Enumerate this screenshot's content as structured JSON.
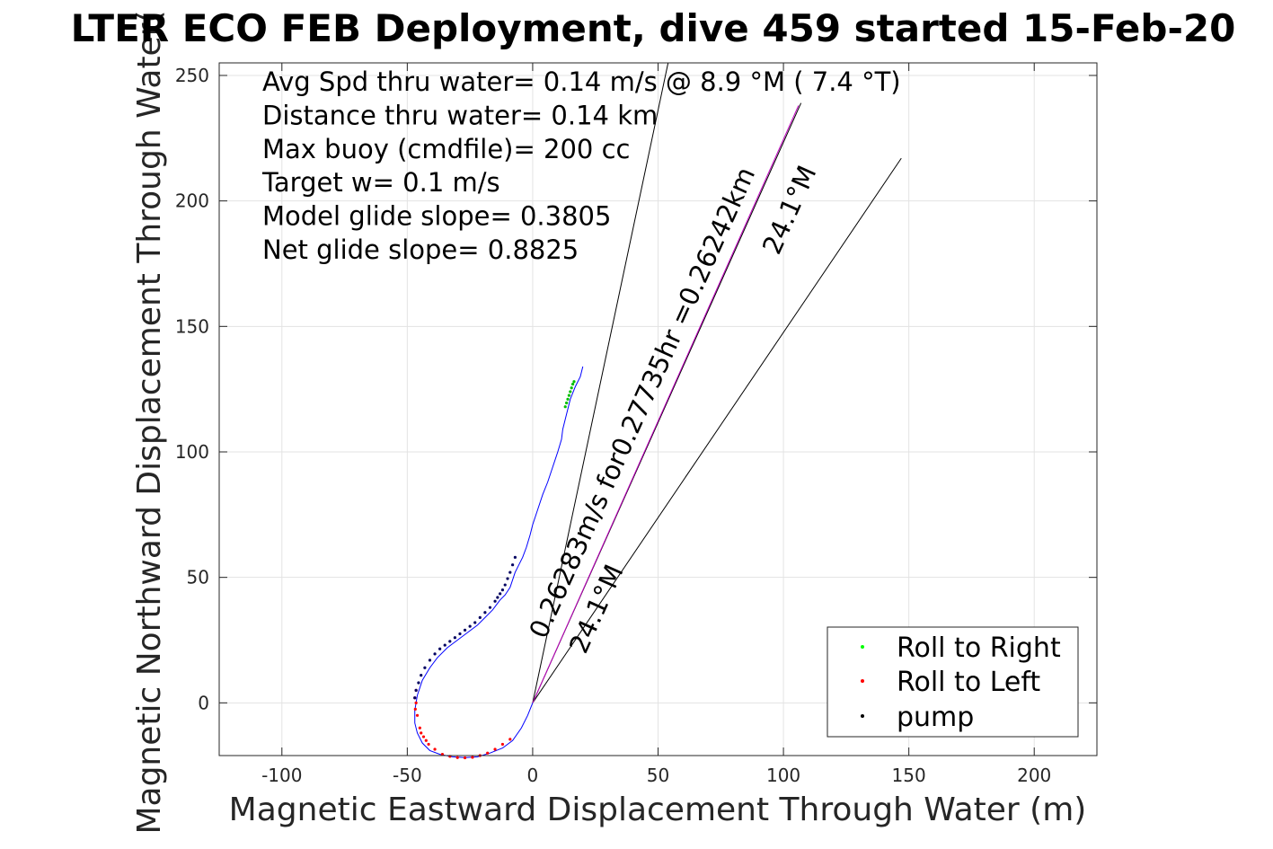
{
  "chart_data": {
    "type": "line",
    "title": "LTER ECO FEB Deployment, dive 459 started 15-Feb-20",
    "xlabel": "Magnetic Eastward Displacement Through Water (m)",
    "ylabel": "Magnetic Northward Displacement Through Water(",
    "xlim": [
      -125,
      225
    ],
    "ylim": [
      -21,
      255
    ],
    "xticks": [
      -100,
      -50,
      0,
      50,
      100,
      150,
      200
    ],
    "xtick_labels": [
      "-100",
      "-50",
      "0",
      "50",
      "100",
      "150",
      "200"
    ],
    "yticks": [
      0,
      50,
      100,
      150,
      200,
      250
    ],
    "ytick_labels": [
      "0",
      "50",
      "100",
      "150",
      "200",
      "250"
    ],
    "grid": true,
    "stats_lines": [
      "Avg Spd thru water=  0.14 m/s @   8.9 °M (  7.4 °T)",
      "Distance thru water=  0.14 km",
      "Max buoy (cmdfile)= 200 cc",
      "Target w= 0.1 m/s",
      "Model glide slope= 0.3805",
      "Net glide slope= 0.8825"
    ],
    "track": {
      "name": "track",
      "color": "#0000ff",
      "x": [
        20,
        19,
        17,
        15,
        14,
        13,
        12,
        11.5,
        10,
        8,
        6,
        4,
        2,
        0,
        -1,
        -2.5,
        -4,
        -5.5,
        -7,
        -8,
        -9,
        -11,
        -13,
        -16,
        -19,
        -22,
        -26,
        -30,
        -34,
        -38,
        -41,
        -44,
        -46,
        -47,
        -47,
        -46,
        -44,
        -41,
        -37,
        -32,
        -27,
        -22,
        -17,
        -12,
        -8,
        -4.5,
        -2,
        0
      ],
      "y": [
        134,
        130,
        126,
        121,
        117,
        113,
        109,
        105,
        100,
        94,
        88,
        83,
        77,
        71,
        67,
        62,
        58,
        55,
        52,
        49,
        46,
        43,
        41,
        37,
        34,
        31,
        28,
        25,
        22,
        18,
        14,
        9,
        3,
        -3,
        -8,
        -12,
        -16,
        -19,
        -20.5,
        -21.5,
        -21.8,
        -21.5,
        -20,
        -18,
        -15,
        -10,
        -5,
        0
      ]
    },
    "roll_right_points": {
      "name": "Roll to Right",
      "color": "#00c000",
      "x": [
        16.5,
        16,
        15.5,
        15,
        14.5,
        14,
        13.5,
        13
      ],
      "y": [
        128,
        127,
        125.5,
        124,
        122.5,
        121,
        119.5,
        118
      ]
    },
    "roll_left_points": {
      "name": "Roll to Left",
      "color": "#ff0000",
      "x": [
        -46.5,
        -46.5,
        -46,
        -45,
        -43.5,
        -41.5,
        -39,
        -36,
        -33,
        -30,
        -27,
        -24,
        -21,
        -18,
        -15,
        -12,
        -9,
        -47,
        -46.8,
        -44.5,
        -42.5
      ],
      "y": [
        5,
        0,
        -5,
        -10,
        -13.5,
        -16.5,
        -18.5,
        -20.5,
        -21.3,
        -21.8,
        -21.9,
        -21.7,
        -21,
        -20,
        -18.5,
        -16.5,
        -14.5,
        2,
        -2.5,
        -12,
        -15
      ]
    },
    "pump_points": {
      "name": "pump",
      "color": "#000060",
      "x": [
        -7,
        -8,
        -9,
        -10,
        -11,
        -12,
        -13,
        -14,
        -15,
        -17,
        -19,
        -21,
        -23,
        -25,
        -27,
        -29,
        -31,
        -33,
        -35,
        -37,
        -39,
        -41,
        -43,
        -44.5,
        -45.5,
        -46.5,
        -47
      ],
      "y": [
        58,
        55,
        52,
        49.5,
        47,
        45,
        43.5,
        42,
        40.5,
        38,
        36,
        34,
        32,
        30.5,
        29,
        27.5,
        26,
        24.5,
        23,
        21.5,
        19.5,
        17,
        14,
        11,
        8,
        5,
        2
      ]
    },
    "reference_lines": [
      {
        "color": "#000000",
        "x": [
          0,
          54
        ],
        "y": [
          0,
          255
        ]
      },
      {
        "color": "#000000",
        "x": [
          0,
          147
        ],
        "y": [
          0,
          217
        ]
      },
      {
        "color": "#000000",
        "x": [
          0,
          107
        ],
        "y": [
          0,
          239
        ]
      },
      {
        "color": "#c000c0",
        "x": [
          0,
          106
        ],
        "y": [
          0,
          238
        ]
      }
    ],
    "annotations": [
      {
        "text": "0.26283m/s for0.27735hr =0.26242km",
        "x": 5,
        "y": 25,
        "angle": -65.8
      },
      {
        "text": "24.1°M",
        "x": 21,
        "y": 19,
        "angle": -65.8
      },
      {
        "text": "24.1°M",
        "x": 98,
        "y": 178,
        "angle": -65.8
      }
    ],
    "legend": {
      "location": "bottom-right",
      "entries": [
        {
          "label": "Roll to Right",
          "color": "#00ff00"
        },
        {
          "label": "Roll to Left",
          "color": "#ff0000"
        },
        {
          "label": "pump",
          "color": "#000000"
        }
      ]
    }
  }
}
